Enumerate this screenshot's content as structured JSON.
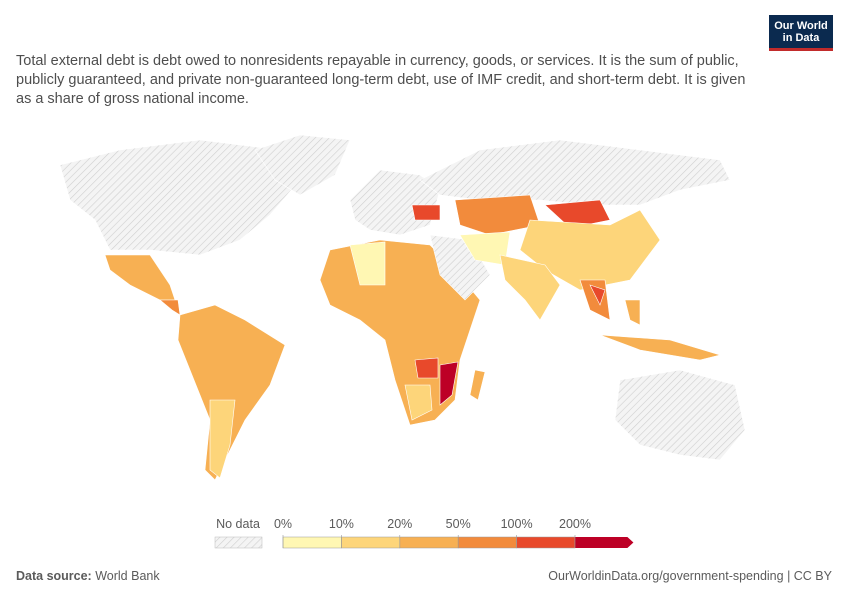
{
  "header": {
    "logo_line1": "Our World",
    "logo_line2": "in Data",
    "subtitle": "Total external debt is debt owed to nonresidents repayable in currency, goods, or services. It is the sum of public, publicly guaranteed, and private non-guaranteed long-term debt, use of IMF credit, and short-term debt. It is given as a share of gross national income."
  },
  "legend": {
    "no_data": "No data",
    "labels": [
      "0%",
      "10%",
      "20%",
      "50%",
      "100%",
      "200%"
    ],
    "colors": [
      "#fff7b3",
      "#fdd57a",
      "#f7b053",
      "#f28b3c",
      "#e8492b",
      "#bd0026"
    ]
  },
  "footer": {
    "source_label": "Data source:",
    "source": "World Bank",
    "link": "OurWorldinData.org/government-spending | CC BY"
  }
}
